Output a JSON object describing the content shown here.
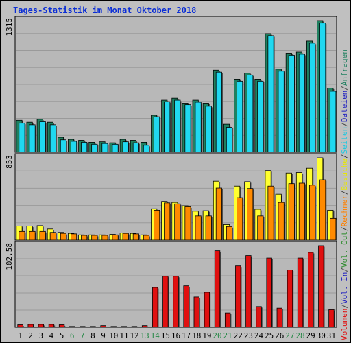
{
  "title": "Tages-Statistik im Monat Oktober 2018",
  "legend": {
    "upper_segments": [
      {
        "text": "Volumen",
        "color": "#e01010"
      },
      {
        "text": "/",
        "color": "#404040"
      },
      {
        "text": "Vol. In",
        "color": "#2020c0"
      },
      {
        "text": "/",
        "color": "#404040"
      },
      {
        "text": "Vol. Out",
        "color": "#2a8a2a"
      },
      {
        "text": "/",
        "color": "#404040"
      },
      {
        "text": "Rechner",
        "color": "#ff8000"
      },
      {
        "text": "/",
        "color": "#404040"
      },
      {
        "text": "Besuche",
        "color": "#e8e800"
      },
      {
        "text": "/",
        "color": "#404040"
      },
      {
        "text": "Seiten",
        "color": "#20c8e0"
      },
      {
        "text": "/",
        "color": "#404040"
      },
      {
        "text": "Dateien",
        "color": "#2020c0"
      },
      {
        "text": "/",
        "color": "#404040"
      },
      {
        "text": "Anfragen",
        "color": "#208060"
      }
    ]
  },
  "chart_data": [
    {
      "type": "bar",
      "ymax_label": "1315",
      "ylim": [
        0,
        1315
      ],
      "categories": [
        "1",
        "2",
        "3",
        "4",
        "5",
        "6",
        "7",
        "8",
        "9",
        "10",
        "11",
        "12",
        "13",
        "14",
        "15",
        "16",
        "17",
        "18",
        "19",
        "20",
        "21",
        "22",
        "23",
        "24",
        "25",
        "26",
        "27",
        "28",
        "29",
        "30",
        "31"
      ],
      "series": [
        {
          "name": "Anfragen",
          "color": "#208060",
          "values": [
            320,
            300,
            330,
            300,
            150,
            130,
            120,
            100,
            105,
            95,
            130,
            120,
            100,
            370,
            520,
            540,
            490,
            520,
            490,
            820,
            280,
            730,
            790,
            730,
            1185,
            830,
            990,
            1000,
            1110,
            1315,
            640
          ]
        },
        {
          "name": "Seiten",
          "color": "#20d8f0",
          "values": [
            290,
            275,
            305,
            275,
            125,
            110,
            100,
            80,
            88,
            80,
            105,
            95,
            70,
            355,
            505,
            520,
            475,
            500,
            460,
            800,
            250,
            710,
            770,
            710,
            1165,
            810,
            970,
            980,
            1090,
            1290,
            610
          ]
        }
      ]
    },
    {
      "type": "bar",
      "ymax_label": "853",
      "ylim": [
        0,
        853
      ],
      "categories": [
        "1",
        "2",
        "3",
        "4",
        "5",
        "6",
        "7",
        "8",
        "9",
        "10",
        "11",
        "12",
        "13",
        "14",
        "15",
        "16",
        "17",
        "18",
        "19",
        "20",
        "21",
        "22",
        "23",
        "24",
        "25",
        "26",
        "27",
        "28",
        "29",
        "30",
        "31"
      ],
      "series": [
        {
          "name": "Besuche",
          "color": "#ffff30",
          "values": [
            145,
            145,
            150,
            115,
            80,
            70,
            55,
            55,
            55,
            60,
            75,
            70,
            55,
            325,
            400,
            390,
            355,
            300,
            305,
            610,
            160,
            560,
            605,
            320,
            720,
            475,
            695,
            700,
            745,
            853,
            310
          ]
        },
        {
          "name": "Rechner",
          "color": "#ff8a00",
          "values": [
            90,
            90,
            90,
            80,
            70,
            65,
            50,
            50,
            50,
            55,
            70,
            65,
            50,
            310,
            385,
            375,
            345,
            250,
            250,
            540,
            140,
            440,
            535,
            250,
            560,
            390,
            585,
            590,
            570,
            625,
            225
          ]
        }
      ]
    },
    {
      "type": "bar",
      "ymax_label": "102.58",
      "ylim": [
        0,
        102.58
      ],
      "categories": [
        "1",
        "2",
        "3",
        "4",
        "5",
        "6",
        "7",
        "8",
        "9",
        "10",
        "11",
        "12",
        "13",
        "14",
        "15",
        "16",
        "17",
        "18",
        "19",
        "20",
        "21",
        "22",
        "23",
        "24",
        "25",
        "26",
        "27",
        "28",
        "29",
        "30",
        "31"
      ],
      "series": [
        {
          "name": "Volumen",
          "color": "#e01010",
          "values": [
            3,
            3.5,
            3.5,
            3.5,
            3,
            1,
            1,
            1,
            2,
            1,
            1,
            1,
            2,
            50,
            64,
            64,
            52,
            38,
            44,
            96,
            18,
            77,
            90,
            26,
            87,
            24,
            72,
            87,
            94,
            102.58,
            22
          ]
        }
      ]
    }
  ],
  "x_labels": [
    "1",
    "2",
    "3",
    "4",
    "5",
    "6",
    "7",
    "8",
    "9",
    "10",
    "11",
    "12",
    "13",
    "14",
    "15",
    "16",
    "17",
    "18",
    "19",
    "20",
    "21",
    "22",
    "23",
    "24",
    "25",
    "26",
    "27",
    "28",
    "29",
    "30",
    "31"
  ],
  "weekend_days": [
    "6",
    "7",
    "13",
    "14",
    "20",
    "21",
    "27",
    "28"
  ],
  "weekend_color": "#2a8a4a",
  "weekday_color": "#000000"
}
